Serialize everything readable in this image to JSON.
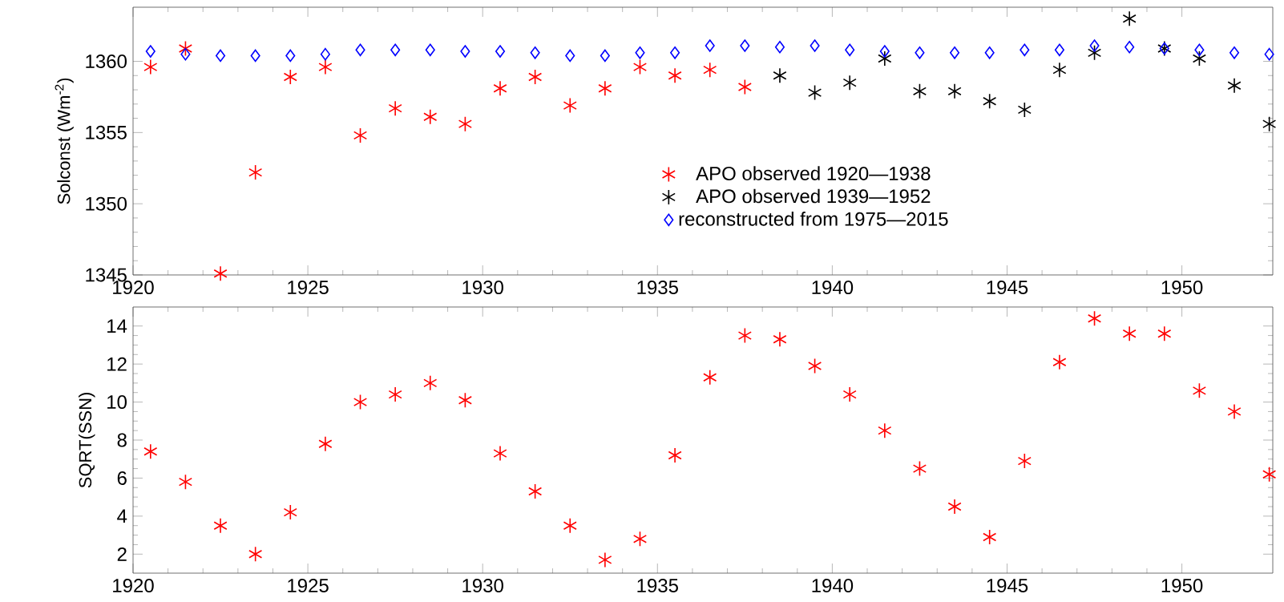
{
  "chart_data": [
    {
      "type": "scatter",
      "ylabel": "Solconst (Wm$^{-2}$)",
      "xlim": [
        1920,
        1952.6
      ],
      "ylim": [
        1345,
        1363.8
      ],
      "xticks": [
        1920,
        1925,
        1930,
        1935,
        1940,
        1945,
        1950
      ],
      "yticks": [
        1345,
        1350,
        1355,
        1360
      ],
      "grid": false,
      "legend": "right",
      "series": [
        {
          "name": "APO observed 1920—1938",
          "color": "#ff0000",
          "marker": "cross",
          "x": [
            1920.5,
            1921.5,
            1922.5,
            1923.5,
            1924.5,
            1925.5,
            1926.5,
            1927.5,
            1928.5,
            1929.5,
            1930.5,
            1931.5,
            1932.5,
            1933.5,
            1934.5,
            1935.5,
            1936.5,
            1937.5
          ],
          "values": [
            1359.6,
            1360.9,
            1345.1,
            1352.2,
            1358.9,
            1359.6,
            1354.8,
            1356.7,
            1356.1,
            1355.6,
            1358.1,
            1358.9,
            1356.9,
            1358.1,
            1359.6,
            1359.0,
            1359.4,
            1358.2
          ]
        },
        {
          "name": "APO observed 1939—1952",
          "color": "#000000",
          "marker": "cross",
          "x": [
            1938.5,
            1939.5,
            1940.5,
            1941.5,
            1942.5,
            1943.5,
            1944.5,
            1945.5,
            1946.5,
            1947.5,
            1948.5,
            1949.5,
            1950.5,
            1951.5,
            1952.5
          ],
          "values": [
            1359.0,
            1357.8,
            1358.5,
            1360.2,
            1357.9,
            1357.9,
            1357.2,
            1356.6,
            1359.4,
            1360.6,
            1363.0,
            1360.9,
            1360.2,
            1358.3,
            1355.6
          ]
        },
        {
          "name": "reconstructed from 1975—2015",
          "color": "#0000ff",
          "marker": "diamond",
          "x": [
            1920.5,
            1921.5,
            1922.5,
            1923.5,
            1924.5,
            1925.5,
            1926.5,
            1927.5,
            1928.5,
            1929.5,
            1930.5,
            1931.5,
            1932.5,
            1933.5,
            1934.5,
            1935.5,
            1936.5,
            1937.5,
            1938.5,
            1939.5,
            1940.5,
            1941.5,
            1942.5,
            1943.5,
            1944.5,
            1945.5,
            1946.5,
            1947.5,
            1948.5,
            1949.5,
            1950.5,
            1951.5,
            1952.5
          ],
          "values": [
            1360.7,
            1360.5,
            1360.4,
            1360.4,
            1360.4,
            1360.5,
            1360.8,
            1360.8,
            1360.8,
            1360.7,
            1360.7,
            1360.6,
            1360.4,
            1360.4,
            1360.6,
            1360.6,
            1361.1,
            1361.1,
            1361.0,
            1361.1,
            1360.8,
            1360.7,
            1360.6,
            1360.6,
            1360.6,
            1360.8,
            1360.8,
            1361.1,
            1361.0,
            1360.9,
            1360.8,
            1360.6,
            1360.5
          ]
        }
      ]
    },
    {
      "type": "scatter",
      "ylabel": "SQRT(SSN)",
      "xlim": [
        1920,
        1952.6
      ],
      "ylim": [
        1,
        15
      ],
      "xticks": [
        1920,
        1925,
        1930,
        1935,
        1940,
        1945,
        1950
      ],
      "yticks": [
        2,
        4,
        6,
        8,
        10,
        12,
        14
      ],
      "grid": false,
      "legend": false,
      "series": [
        {
          "color": "#ff0000",
          "marker": "cross",
          "x": [
            1920.5,
            1921.5,
            1922.5,
            1923.5,
            1924.5,
            1925.5,
            1926.5,
            1927.5,
            1928.5,
            1929.5,
            1930.5,
            1931.5,
            1932.5,
            1933.5,
            1934.5,
            1935.5,
            1936.5,
            1937.5,
            1938.5,
            1939.5,
            1940.5,
            1941.5,
            1942.5,
            1943.5,
            1944.5,
            1945.5,
            1946.5,
            1947.5,
            1948.5,
            1949.5,
            1950.5,
            1951.5,
            1952.5
          ],
          "values": [
            7.4,
            5.8,
            3.5,
            2.0,
            4.2,
            7.8,
            10.0,
            10.4,
            11.0,
            10.1,
            7.3,
            5.3,
            3.5,
            1.7,
            2.8,
            7.2,
            11.3,
            13.5,
            13.3,
            11.9,
            10.4,
            8.5,
            6.5,
            4.5,
            2.9,
            6.9,
            12.1,
            14.4,
            13.6,
            13.6,
            10.6,
            9.5,
            6.2
          ]
        }
      ]
    }
  ]
}
